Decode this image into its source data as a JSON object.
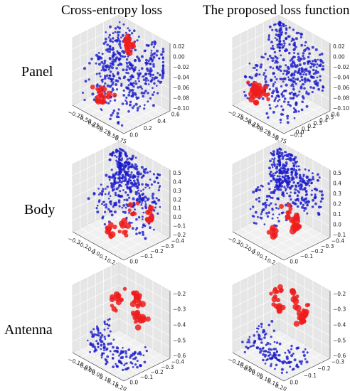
{
  "column_titles": [
    "Cross-entropy loss",
    "The proposed loss function"
  ],
  "row_titles": [
    "Panel",
    "Body",
    "Antenna"
  ],
  "colors": {
    "normal": "#1a1acc",
    "highlight": "#ee1c1c",
    "pane_left": "#e6e6e6",
    "pane_right": "#ececec",
    "pane_floor": "#f0f0f0"
  },
  "chart_data": [
    {
      "type": "scatter",
      "row": "Panel",
      "column": "Cross-entropy loss",
      "right_axis_ticks": [
        "0.02",
        "0.00",
        "−0.02",
        "−0.04",
        "−0.06",
        "−0.08",
        "−0.10"
      ],
      "front_axis_ticks": [
        "−0.75",
        "−0.50",
        "−0.25",
        "0.00",
        "0.25",
        "0.50",
        "0.75"
      ],
      "depth_axis_ticks": [
        "0.0",
        "0.2",
        "0.4",
        "0.6"
      ],
      "series": [
        {
          "color": "blue",
          "points": [
            [
              -0.6,
              0.55,
              0.01
            ],
            [
              -0.3,
              0.5,
              0.0
            ],
            [
              0.1,
              0.45,
              -0.02
            ],
            [
              0.5,
              0.5,
              -0.04
            ],
            [
              0.7,
              0.3,
              -0.06
            ],
            [
              -0.5,
              0.2,
              -0.08
            ],
            [
              0.3,
              0.1,
              -0.1
            ],
            [
              -0.1,
              0.3,
              -0.05
            ],
            [
              0.6,
              0.6,
              0.0
            ],
            [
              -0.7,
              0.4,
              -0.03
            ]
          ]
        },
        {
          "color": "red",
          "points": [
            [
              -0.4,
              0.6,
              0.02
            ],
            [
              -0.3,
              0.55,
              0.02
            ],
            [
              -0.2,
              0.05,
              -0.1
            ],
            [
              -0.1,
              0.0,
              -0.11
            ],
            [
              0.0,
              0.1,
              -0.1
            ]
          ]
        }
      ]
    },
    {
      "type": "scatter",
      "row": "Panel",
      "column": "The proposed loss function",
      "right_axis_ticks": [
        "0.02",
        "0.00",
        "−0.02",
        "−0.04",
        "−0.06",
        "−0.08",
        "−0.10"
      ],
      "front_axis_ticks": [
        "−0.75",
        "−0.50",
        "−0.25",
        "0.00",
        "0.25",
        "0.50",
        "0.75"
      ],
      "depth_axis_ticks": [
        "−0.1",
        "0.0",
        "0.1",
        "0.2",
        "0.3",
        "0.4",
        "0.5",
        "0.6"
      ],
      "series": [
        {
          "color": "blue",
          "points": [
            [
              -0.6,
              0.55,
              0.01
            ],
            [
              -0.2,
              0.5,
              0.0
            ],
            [
              0.2,
              0.45,
              -0.02
            ],
            [
              0.6,
              0.5,
              -0.04
            ],
            [
              0.7,
              0.2,
              -0.06
            ],
            [
              -0.5,
              0.2,
              -0.08
            ],
            [
              0.3,
              0.1,
              -0.1
            ],
            [
              0.0,
              0.3,
              -0.05
            ]
          ]
        },
        {
          "color": "red",
          "points": [
            [
              -0.3,
              0.05,
              -0.1
            ],
            [
              -0.2,
              0.0,
              -0.11
            ],
            [
              -0.1,
              0.1,
              -0.1
            ]
          ]
        }
      ]
    },
    {
      "type": "scatter",
      "row": "Body",
      "column": "Cross-entropy loss",
      "right_axis_ticks": [
        "0.5",
        "0.4",
        "0.3",
        "0.2",
        "0.1",
        "0.0",
        "−0.1",
        "−0.2"
      ],
      "front_axis_ticks": [
        "−0.3",
        "−0.2",
        "−0.1",
        "0.0",
        "0.1",
        "0.2",
        "0.3"
      ],
      "depth_axis_ticks": [
        "0.0",
        "−0.1",
        "−0.2",
        "−0.3",
        "−0.4"
      ],
      "series": [
        {
          "color": "blue",
          "points": [
            [
              -0.2,
              -0.1,
              0.4
            ],
            [
              0.0,
              -0.2,
              0.3
            ],
            [
              0.1,
              -0.1,
              0.2
            ],
            [
              -0.1,
              -0.3,
              0.1
            ],
            [
              0.2,
              -0.2,
              0.0
            ],
            [
              -0.3,
              -0.1,
              0.3
            ]
          ]
        },
        {
          "color": "red",
          "points": [
            [
              0.1,
              -0.4,
              -0.2
            ],
            [
              0.2,
              -0.35,
              -0.1
            ],
            [
              0.3,
              -0.2,
              0.0
            ],
            [
              0.25,
              -0.3,
              0.2
            ]
          ]
        }
      ]
    },
    {
      "type": "scatter",
      "row": "Body",
      "column": "The proposed loss function",
      "right_axis_ticks": [
        "0.5",
        "0.4",
        "0.3",
        "0.2",
        "0.1",
        "0.0",
        "−0.1"
      ],
      "front_axis_ticks": [
        "−0.3",
        "−0.2",
        "−0.1",
        "0.0",
        "0.1",
        "0.2",
        "0.3"
      ],
      "depth_axis_ticks": [
        "0.0",
        "−0.1",
        "−0.2",
        "−0.3",
        "−0.4"
      ],
      "series": [
        {
          "color": "blue",
          "points": [
            [
              -0.2,
              -0.1,
              0.4
            ],
            [
              0.0,
              -0.2,
              0.3
            ],
            [
              0.1,
              -0.1,
              0.2
            ],
            [
              -0.1,
              -0.3,
              0.1
            ],
            [
              -0.3,
              -0.1,
              0.3
            ]
          ]
        },
        {
          "color": "red",
          "points": [
            [
              0.1,
              -0.4,
              -0.15
            ],
            [
              0.25,
              -0.3,
              0.0
            ],
            [
              0.2,
              -0.35,
              0.2
            ]
          ]
        }
      ]
    },
    {
      "type": "scatter",
      "row": "Antenna",
      "column": "Cross-entropy loss",
      "right_axis_ticks": [
        "−0.2",
        "−0.3",
        "−0.4",
        "−0.5",
        "−0.6"
      ],
      "front_axis_ticks": [
        "−0.10",
        "−0.05",
        "0.00",
        "0.05",
        "0.10",
        "0.15",
        "0.20"
      ],
      "depth_axis_ticks": [
        "0.0",
        "−0.1",
        "−0.2",
        "−0.3",
        "−0.4"
      ],
      "series": [
        {
          "color": "blue",
          "points": [
            [
              -0.08,
              -0.2,
              -0.6
            ],
            [
              0.0,
              -0.3,
              -0.65
            ],
            [
              0.1,
              -0.35,
              -0.6
            ],
            [
              0.18,
              -0.25,
              -0.55
            ]
          ]
        },
        {
          "color": "red",
          "points": [
            [
              -0.05,
              -0.1,
              -0.35
            ],
            [
              0.02,
              -0.05,
              -0.3
            ],
            [
              0.1,
              -0.1,
              -0.35
            ],
            [
              0.15,
              -0.2,
              -0.4
            ]
          ]
        }
      ]
    },
    {
      "type": "scatter",
      "row": "Antenna",
      "column": "The proposed loss function",
      "right_axis_ticks": [
        "−0.2",
        "−0.3",
        "−0.4",
        "−0.5",
        "−0.6"
      ],
      "front_axis_ticks": [
        "−0.10",
        "−0.05",
        "0.00",
        "0.05",
        "0.10",
        "0.15",
        "0.20"
      ],
      "depth_axis_ticks": [
        "0.0",
        "−0.1",
        "−0.2",
        "−0.3"
      ],
      "series": [
        {
          "color": "blue",
          "points": [
            [
              -0.08,
              -0.2,
              -0.6
            ],
            [
              0.0,
              -0.3,
              -0.65
            ],
            [
              0.1,
              -0.35,
              -0.6
            ],
            [
              0.18,
              -0.25,
              -0.55
            ]
          ]
        },
        {
          "color": "red",
          "points": [
            [
              -0.05,
              -0.1,
              -0.35
            ],
            [
              0.02,
              -0.05,
              -0.3
            ],
            [
              0.1,
              -0.1,
              -0.35
            ]
          ]
        }
      ]
    }
  ]
}
